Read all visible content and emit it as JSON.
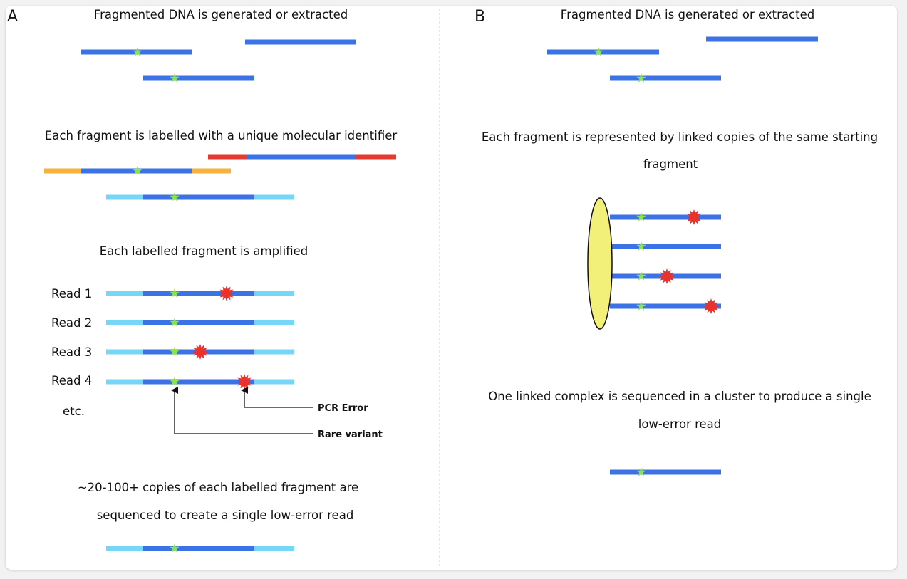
{
  "colors": {
    "fragment": "#3b73e6",
    "tag_light_blue": "#76d6f7",
    "tag_orange": "#f6b23a",
    "tag_red": "#e53a2f",
    "variant_star": "#8ee34a",
    "error_burst": "#e8322b",
    "bead": "#f3f07a",
    "divider": "#cccccc"
  },
  "icons": [
    "rare-variant-star-icon",
    "pcr-error-burst-icon",
    "linker-bead-icon"
  ],
  "panel_a": {
    "label": "A",
    "step1_text": "Fragmented DNA is generated or extracted",
    "step2_text": "Each fragment is labelled with a unique molecular identifier",
    "step3_text": "Each labelled fragment is amplified",
    "reads": [
      "Read 1",
      "Read 2",
      "Read 3",
      "Read 4",
      "etc."
    ],
    "annotations": {
      "pcr_error": "PCR Error",
      "rare_variant": "Rare variant"
    },
    "step4_line1": "~20-100+ copies of each labelled fragment are",
    "step4_line2": "sequenced to create a single low-error read"
  },
  "panel_b": {
    "label": "B",
    "step1_text": "Fragmented DNA is generated or extracted",
    "step2_line1": "Each fragment is represented by linked copies of the same starting",
    "step2_line2": "fragment",
    "step3_line1": "One linked complex is sequenced in a cluster to produce a single",
    "step3_line2": "low-error read"
  }
}
